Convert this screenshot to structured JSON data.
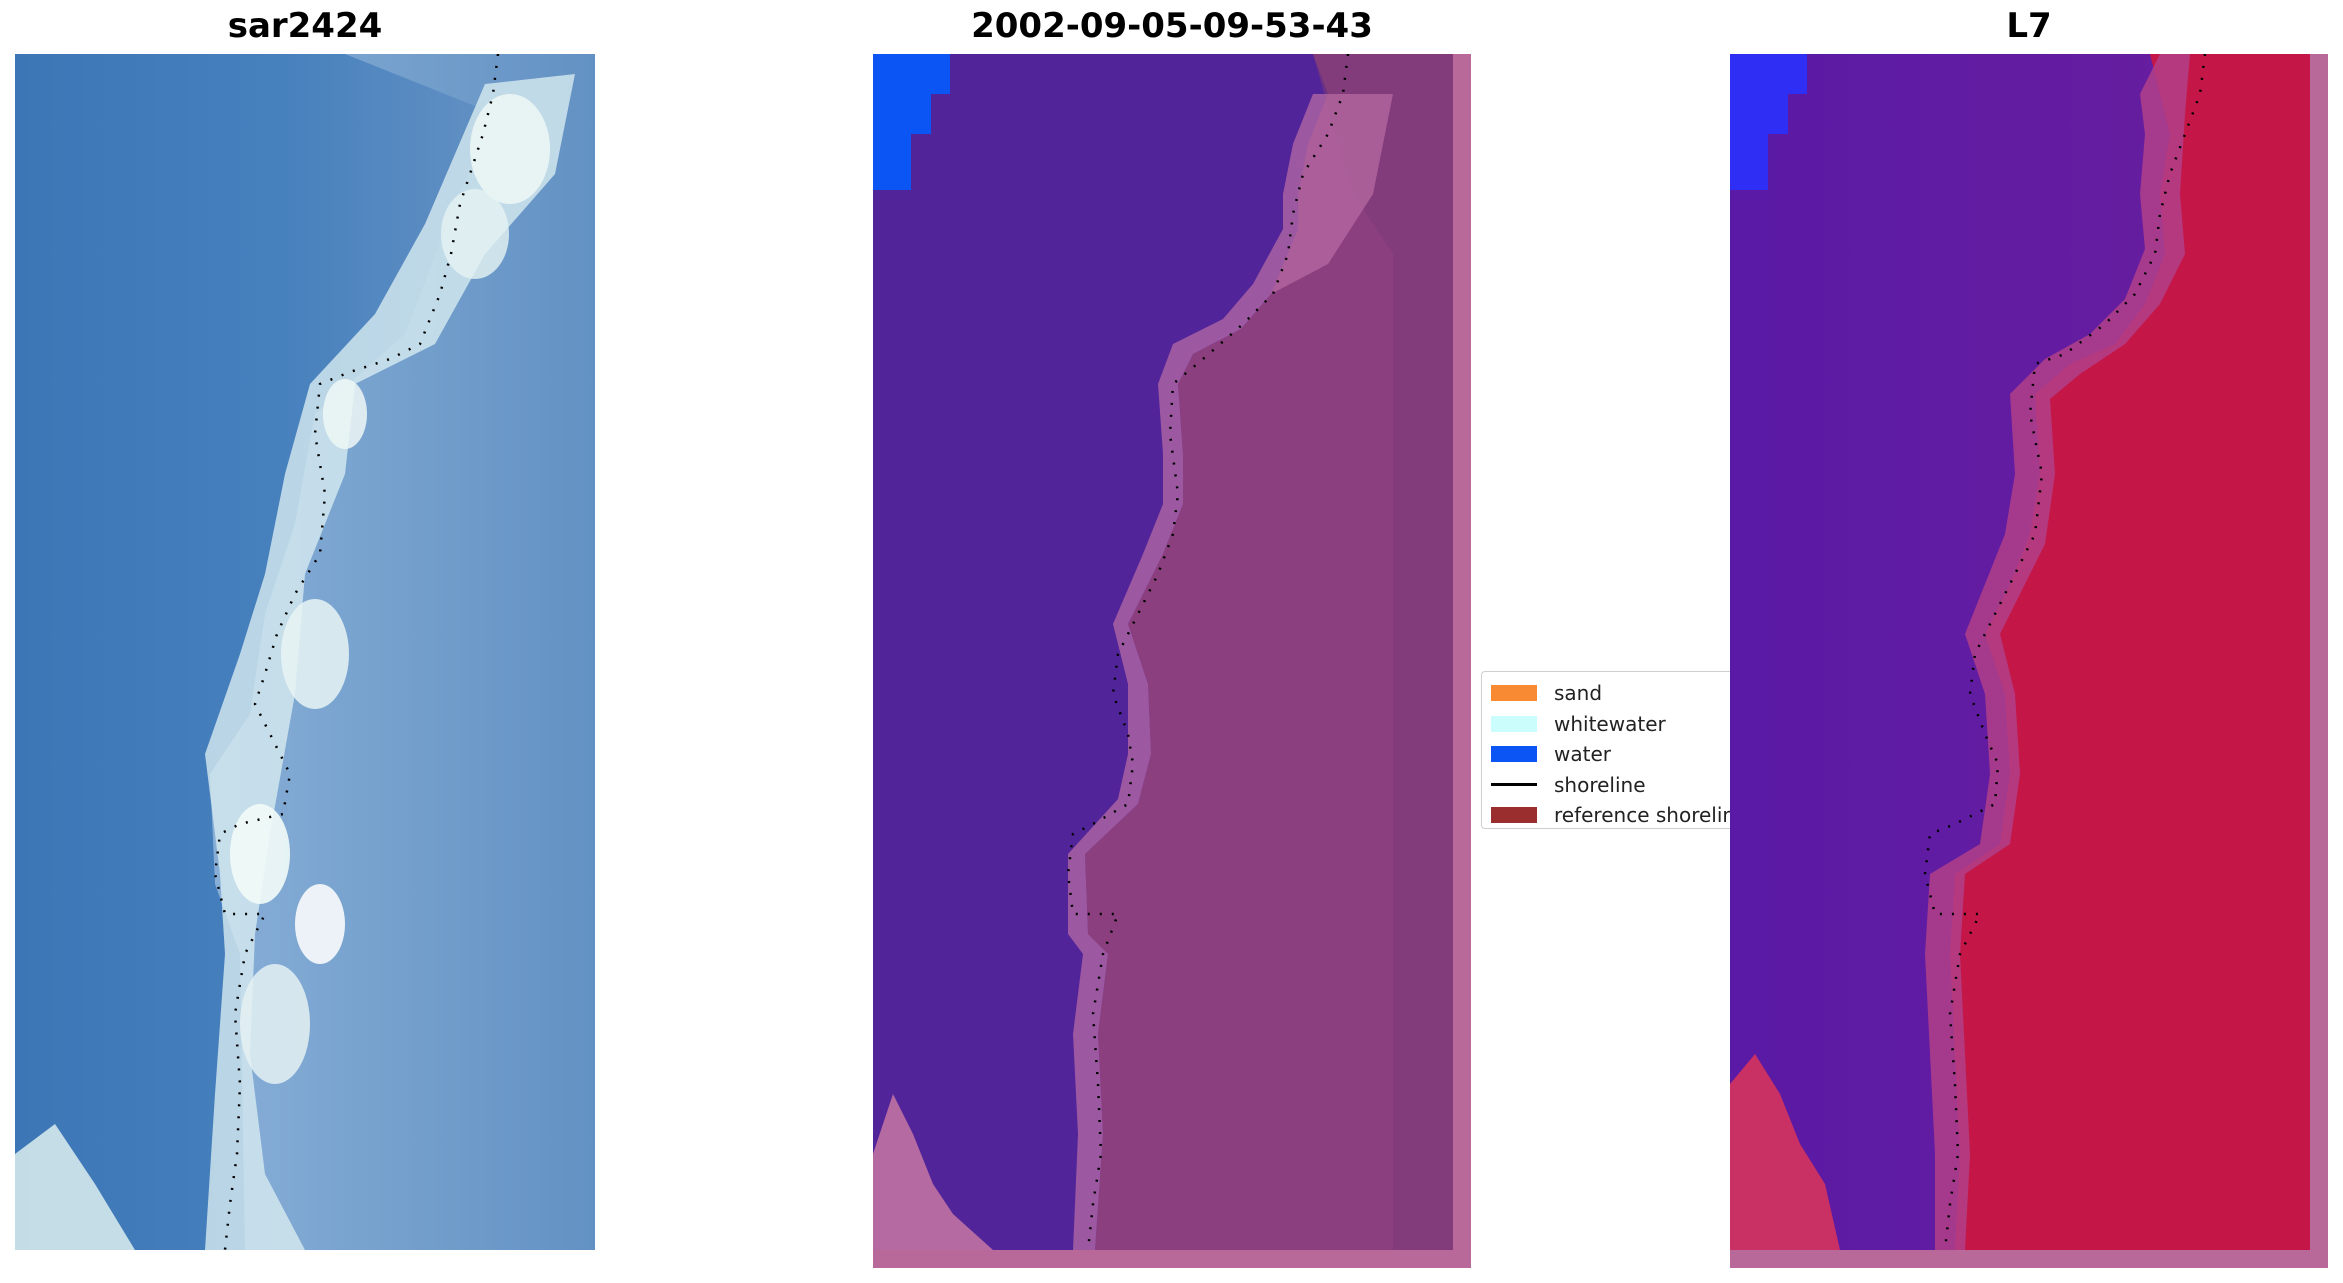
{
  "titles": {
    "rgb": "sar2424",
    "classification": "2002-09-05-09-53-43",
    "index": "L7"
  },
  "legend": {
    "items": [
      {
        "label": "sand",
        "color": "#f98a34"
      },
      {
        "label": "whitewater",
        "color": "#ccfdfd"
      },
      {
        "label": "water",
        "color": "#0a55f3"
      },
      {
        "label": "shoreline",
        "color": "#000000"
      },
      {
        "label": "reference shoreline",
        "color": "#9a2e2e"
      }
    ]
  },
  "colors": {
    "ocean_blue": "#3e78b8",
    "foam_white": "#e8f6f4",
    "classified_water": "#52249a",
    "classified_land": "#8b3f7f",
    "water_pixel": "#0a55f3",
    "index_water": "#5818a6",
    "index_land": "#c81545"
  }
}
